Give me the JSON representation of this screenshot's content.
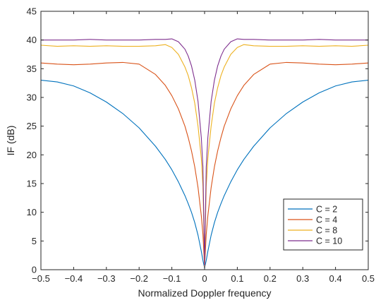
{
  "chart_data": {
    "type": "line",
    "title": "",
    "xlabel": "Normalized Doppler frequency",
    "ylabel": "IF (dB)",
    "xlim": [
      -0.5,
      0.5
    ],
    "ylim": [
      0,
      45
    ],
    "xticks": [
      -0.5,
      -0.4,
      -0.3,
      -0.2,
      -0.1,
      0,
      0.1,
      0.2,
      0.3,
      0.4,
      0.5
    ],
    "xtick_labels": [
      "−0.5",
      "−0.4",
      "−0.3",
      "−0.2",
      "−0.1",
      "0",
      "0.1",
      "0.2",
      "0.3",
      "0.4",
      "0.5"
    ],
    "yticks": [
      0,
      5,
      10,
      15,
      20,
      25,
      30,
      35,
      40,
      45
    ],
    "ytick_labels": [
      "0",
      "5",
      "10",
      "15",
      "20",
      "25",
      "30",
      "35",
      "40",
      "45"
    ],
    "grid": false,
    "legend_position": "bottom-right",
    "x": [
      -0.5,
      -0.45,
      -0.4,
      -0.35,
      -0.3,
      -0.25,
      -0.2,
      -0.15,
      -0.12,
      -0.1,
      -0.08,
      -0.06,
      -0.05,
      -0.04,
      -0.03,
      -0.02,
      -0.01,
      -0.005,
      0,
      0.005,
      0.01,
      0.02,
      0.03,
      0.04,
      0.05,
      0.06,
      0.08,
      0.1,
      0.12,
      0.15,
      0.2,
      0.25,
      0.3,
      0.35,
      0.4,
      0.45,
      0.5
    ],
    "series": [
      {
        "name": "C = 2",
        "color": "#0072BD",
        "values": [
          33.0,
          32.7,
          32.0,
          30.8,
          29.2,
          27.2,
          24.7,
          21.5,
          19.2,
          17.4,
          15.3,
          12.9,
          11.5,
          10.0,
          8.2,
          6.0,
          3.2,
          1.6,
          0.3,
          1.6,
          3.2,
          6.0,
          8.2,
          10.0,
          11.5,
          12.9,
          15.3,
          17.4,
          19.2,
          21.5,
          24.7,
          27.2,
          29.2,
          30.8,
          32.0,
          32.7,
          33.0
        ]
      },
      {
        "name": "C = 4",
        "color": "#D95319",
        "values": [
          36.0,
          35.8,
          35.7,
          35.8,
          36.0,
          36.1,
          35.8,
          34.0,
          32.1,
          30.3,
          28.0,
          25.0,
          23.0,
          20.7,
          17.9,
          14.3,
          9.4,
          6.1,
          0.5,
          6.1,
          9.4,
          14.3,
          17.9,
          20.7,
          23.0,
          25.0,
          28.0,
          30.3,
          32.1,
          34.0,
          35.8,
          36.1,
          36.0,
          35.8,
          35.7,
          35.8,
          36.0
        ]
      },
      {
        "name": "C = 8",
        "color": "#EDB120",
        "values": [
          39.1,
          38.9,
          39.0,
          38.9,
          39.0,
          38.9,
          38.9,
          39.0,
          39.2,
          38.7,
          37.5,
          35.3,
          33.8,
          31.7,
          29.0,
          25.0,
          19.4,
          14.5,
          0.7,
          14.5,
          19.4,
          25.0,
          29.0,
          31.7,
          33.8,
          35.3,
          37.5,
          38.7,
          39.2,
          39.0,
          38.9,
          38.9,
          39.0,
          38.9,
          39.0,
          38.9,
          39.1
        ]
      },
      {
        "name": "C = 10",
        "color": "#7E2F8E",
        "values": [
          40.0,
          40.0,
          40.0,
          40.1,
          40.0,
          40.0,
          40.0,
          40.1,
          40.1,
          40.2,
          39.7,
          38.4,
          37.2,
          35.5,
          33.0,
          29.3,
          23.0,
          17.8,
          0.8,
          17.8,
          23.0,
          29.3,
          33.0,
          35.5,
          37.2,
          38.4,
          39.7,
          40.2,
          40.1,
          40.1,
          40.0,
          40.0,
          40.0,
          40.1,
          40.0,
          40.0,
          40.0
        ]
      }
    ]
  }
}
